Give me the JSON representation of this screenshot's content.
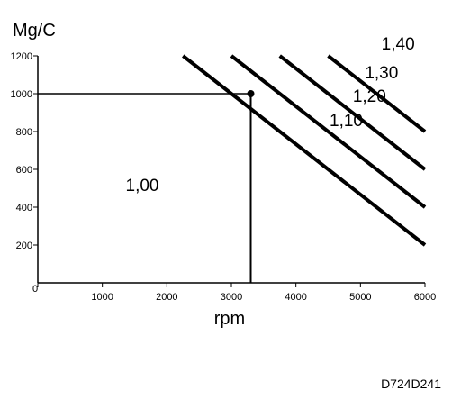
{
  "chart_data": {
    "type": "line",
    "ylabel": "Mg/C",
    "xlabel": "rpm",
    "xlim": [
      0,
      6000
    ],
    "ylim": [
      0,
      1200
    ],
    "x_ticks": [
      "0",
      "1000",
      "2000",
      "3000",
      "4000",
      "5000",
      "6000"
    ],
    "y_ticks": [
      "200",
      "400",
      "600",
      "800",
      "1000",
      "1200"
    ],
    "series": [
      {
        "name": "1,10",
        "x": [
          2250,
          6000
        ],
        "y": [
          1200,
          200
        ]
      },
      {
        "name": "1,20",
        "x": [
          3000,
          6000
        ],
        "y": [
          1200,
          400
        ]
      },
      {
        "name": "1,30",
        "x": [
          3750,
          6000
        ],
        "y": [
          1200,
          600
        ]
      },
      {
        "name": "1,40",
        "x": [
          4500,
          6000
        ],
        "y": [
          1200,
          800
        ]
      }
    ],
    "region_label": "1,00",
    "marker_point": {
      "x": 3300,
      "y": 1000
    },
    "grid": false
  },
  "figure_code": "D724D241"
}
